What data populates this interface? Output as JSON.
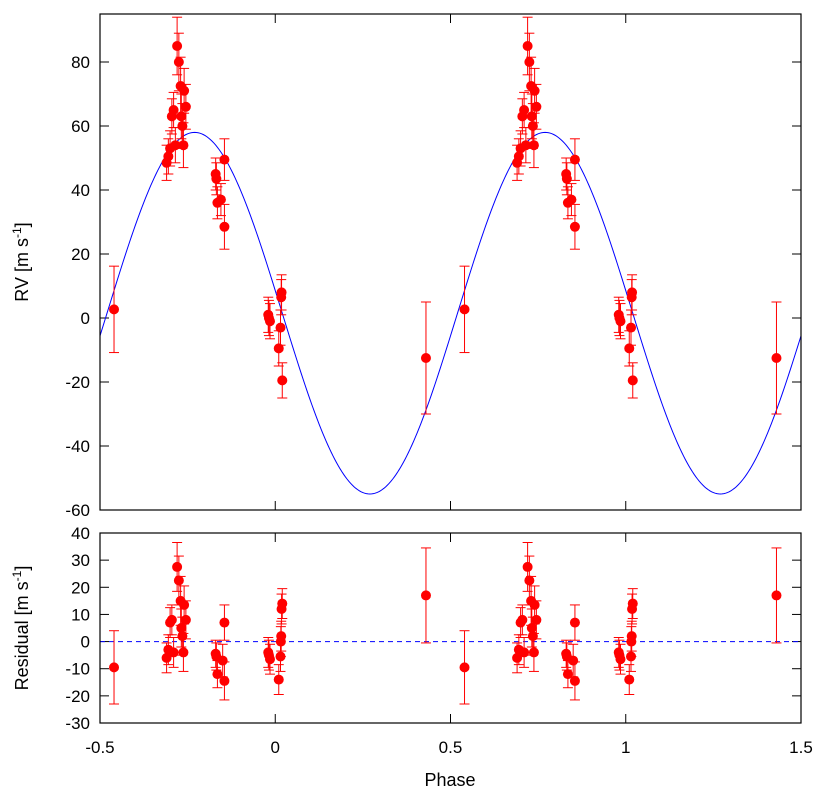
{
  "chart_data": [
    {
      "panel": "top",
      "type": "scatter",
      "ylabel": "RV [m s-1]",
      "ylabel_parts": {
        "main": "RV [m s",
        "sup": "-1",
        "close": "]"
      },
      "xlim": [
        -0.5,
        1.5
      ],
      "ylim": [
        -60,
        95
      ],
      "yticks": [
        "-60",
        "-40",
        "-20",
        "0",
        "20",
        "40",
        "60",
        "80"
      ],
      "ytick_values": [
        -60,
        -40,
        -20,
        0,
        20,
        40,
        60,
        80
      ],
      "model": {
        "type": "line",
        "description": "sinusoid",
        "amplitude": 56.5,
        "offset": 1.5,
        "peak_phase": -0.23,
        "color": "#0000ff"
      },
      "series": [
        {
          "color": "#ff0000",
          "points": [
            {
              "x": -0.46,
              "y": 2.7,
              "err": 13.5
            },
            {
              "x": -0.31,
              "y": 48.5,
              "err": 5.5
            },
            {
              "x": -0.305,
              "y": 50.5,
              "err": 5.5
            },
            {
              "x": -0.3,
              "y": 53,
              "err": 5.5
            },
            {
              "x": -0.295,
              "y": 63,
              "err": 5.5
            },
            {
              "x": -0.29,
              "y": 65,
              "err": 5.5
            },
            {
              "x": -0.285,
              "y": 54,
              "err": 5.5
            },
            {
              "x": -0.28,
              "y": 85,
              "err": 9
            },
            {
              "x": -0.275,
              "y": 80,
              "err": 9
            },
            {
              "x": -0.27,
              "y": 72.5,
              "err": 9
            },
            {
              "x": -0.268,
              "y": 63,
              "err": 7
            },
            {
              "x": -0.265,
              "y": 60,
              "err": 7
            },
            {
              "x": -0.262,
              "y": 54,
              "err": 7
            },
            {
              "x": -0.26,
              "y": 71,
              "err": 7
            },
            {
              "x": -0.255,
              "y": 66,
              "err": 7
            },
            {
              "x": -0.17,
              "y": 45,
              "err": 5
            },
            {
              "x": -0.168,
              "y": 43.5,
              "err": 5
            },
            {
              "x": -0.165,
              "y": 36,
              "err": 5
            },
            {
              "x": -0.155,
              "y": 37,
              "err": 5
            },
            {
              "x": -0.145,
              "y": 49.5,
              "err": 6.5
            },
            {
              "x": -0.145,
              "y": 28.5,
              "err": 7
            },
            {
              "x": -0.02,
              "y": 1,
              "err": 5.5
            },
            {
              "x": -0.018,
              "y": 0,
              "err": 5.5
            },
            {
              "x": -0.015,
              "y": -1,
              "err": 5.5
            },
            {
              "x": 0.01,
              "y": -9.5,
              "err": 5.5
            },
            {
              "x": 0.015,
              "y": -3,
              "err": 5.5
            },
            {
              "x": 0.017,
              "y": 6.5,
              "err": 5.5
            },
            {
              "x": 0.018,
              "y": 8,
              "err": 5.5
            },
            {
              "x": 0.02,
              "y": -19.5,
              "err": 5.5
            },
            {
              "x": 0.43,
              "y": -12.5,
              "err": 17.5
            }
          ]
        }
      ]
    },
    {
      "panel": "bottom",
      "type": "scatter",
      "xlabel": "Phase",
      "ylabel": "Residual [m s-1]",
      "ylabel_parts": {
        "main": "Residual [m s",
        "sup": "-1",
        "close": "]"
      },
      "xlim": [
        -0.5,
        1.5
      ],
      "ylim": [
        -30,
        40
      ],
      "xticks": [
        "-0.5",
        "0",
        "0.5",
        "1",
        "1.5"
      ],
      "xtick_values": [
        -0.5,
        0,
        0.5,
        1,
        1.5
      ],
      "yticks": [
        "-30",
        "-20",
        "-10",
        "0",
        "10",
        "20",
        "30",
        "40"
      ],
      "ytick_values": [
        -30,
        -20,
        -10,
        0,
        10,
        20,
        30,
        40
      ],
      "reference_line": {
        "y": 0,
        "style": "dashed",
        "color": "#0000ff"
      },
      "series": [
        {
          "color": "#ff0000",
          "points": [
            {
              "x": -0.46,
              "y": -9.5,
              "err": 13.5
            },
            {
              "x": -0.31,
              "y": -6,
              "err": 5.5
            },
            {
              "x": -0.305,
              "y": -3,
              "err": 5.5
            },
            {
              "x": -0.3,
              "y": 7,
              "err": 5.5
            },
            {
              "x": -0.295,
              "y": 8,
              "err": 5.5
            },
            {
              "x": -0.29,
              "y": -4,
              "err": 5.5
            },
            {
              "x": -0.28,
              "y": 27.5,
              "err": 9
            },
            {
              "x": -0.275,
              "y": 22.5,
              "err": 9
            },
            {
              "x": -0.27,
              "y": 15,
              "err": 9
            },
            {
              "x": -0.268,
              "y": 5,
              "err": 7
            },
            {
              "x": -0.265,
              "y": 2,
              "err": 7
            },
            {
              "x": -0.262,
              "y": -4,
              "err": 7
            },
            {
              "x": -0.26,
              "y": 13.5,
              "err": 7
            },
            {
              "x": -0.255,
              "y": 8,
              "err": 7
            },
            {
              "x": -0.17,
              "y": -4.5,
              "err": 5
            },
            {
              "x": -0.168,
              "y": -5.5,
              "err": 5
            },
            {
              "x": -0.165,
              "y": -12,
              "err": 5
            },
            {
              "x": -0.15,
              "y": -7,
              "err": 6
            },
            {
              "x": -0.145,
              "y": 7,
              "err": 6.5
            },
            {
              "x": -0.145,
              "y": -14.5,
              "err": 7
            },
            {
              "x": -0.02,
              "y": -4,
              "err": 5.5
            },
            {
              "x": -0.018,
              "y": -5,
              "err": 5.5
            },
            {
              "x": -0.015,
              "y": -6.5,
              "err": 5.5
            },
            {
              "x": 0.01,
              "y": -14,
              "err": 5.5
            },
            {
              "x": 0.015,
              "y": -5.5,
              "err": 5.5
            },
            {
              "x": 0.016,
              "y": 0,
              "err": 5.5
            },
            {
              "x": 0.017,
              "y": 2,
              "err": 5.5
            },
            {
              "x": 0.018,
              "y": 12,
              "err": 5.5
            },
            {
              "x": 0.02,
              "y": 14,
              "err": 5.5
            },
            {
              "x": 0.43,
              "y": 17,
              "err": 17.5
            }
          ]
        }
      ]
    }
  ]
}
